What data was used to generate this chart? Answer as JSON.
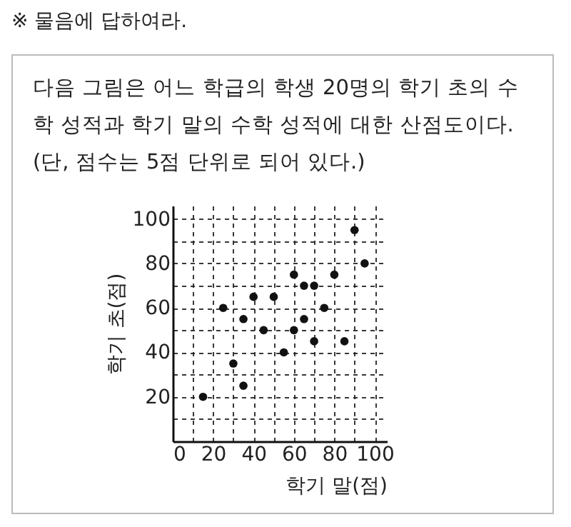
{
  "chart_data": {
    "type": "scatter",
    "title": "다음 그림은 어느 학급의 학생 20명의 학기 초의 수학 성적과 학기 말의 수학 성적에 대한 산점도이다. (단, 점수는 5점 단위로 되어 있다.)",
    "annotations": [
      "※ 물음에 답하여라."
    ],
    "xlabel": "학기 말(점)",
    "ylabel": "학기 초(점)",
    "x": [
      15,
      25,
      30,
      35,
      35,
      40,
      45,
      50,
      55,
      60,
      60,
      65,
      65,
      70,
      70,
      75,
      80,
      85,
      90,
      95
    ],
    "series": [
      {
        "color": "#111111",
        "values": [
          20,
          60,
          35,
          55,
          25,
          65,
          50,
          65,
          40,
          75,
          50,
          70,
          55,
          70,
          45,
          60,
          75,
          45,
          95,
          80
        ]
      }
    ],
    "xlim": [
      0,
      106
    ],
    "ylim": [
      0,
      106
    ],
    "xticks": [
      0,
      {
        "value": 10,
        "label": null
      },
      20,
      {
        "value": 30,
        "label": null
      },
      40,
      {
        "value": 50,
        "label": null
      },
      60,
      {
        "value": 70,
        "label": null
      },
      80,
      {
        "value": 90,
        "label": null
      },
      100
    ],
    "yticks": [
      {
        "value": 10,
        "label": null
      },
      20,
      {
        "value": 30,
        "label": null
      },
      40,
      {
        "value": 50,
        "label": null
      },
      60,
      {
        "value": 70,
        "label": null
      },
      80,
      {
        "value": 90,
        "label": null
      },
      100
    ],
    "grid": true,
    "legend": false,
    "marker": "circle"
  }
}
